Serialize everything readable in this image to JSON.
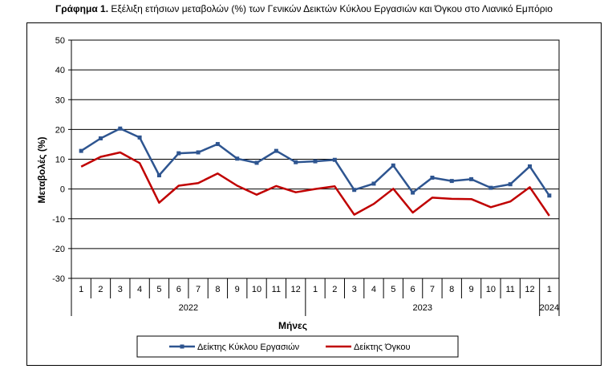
{
  "title_prefix": "Γράφημα 1.",
  "title_text": " Εξέλιξη ετήσιων μεταβολών (%) των Γενικών Δεικτών Κύκλου Εργασιών και Όγκου στο Λιανικό Εμπόριο",
  "chart_data": {
    "type": "line",
    "ylabel": "Μεταβολές  (%)",
    "xlabel": "Μήνες",
    "ylim": [
      -30,
      50
    ],
    "yticks": [
      -30,
      -20,
      -10,
      0,
      10,
      20,
      30,
      40,
      50
    ],
    "grid": "horizontal",
    "legend_position": "bottom",
    "categories": [
      "1",
      "2",
      "3",
      "4",
      "5",
      "6",
      "7",
      "8",
      "9",
      "10",
      "11",
      "12",
      "1",
      "2",
      "3",
      "4",
      "5",
      "6",
      "7",
      "8",
      "9",
      "10",
      "11",
      "12",
      "1"
    ],
    "years": [
      {
        "label": "2022",
        "start": 0,
        "end": 11
      },
      {
        "label": "2023",
        "start": 12,
        "end": 23
      },
      {
        "label": "2024",
        "start": 24,
        "end": 24
      }
    ],
    "series": [
      {
        "name": "Δείκτης Κύκλου Εργασιών",
        "color": "#2E5590",
        "values": [
          12.8,
          17.0,
          20.3,
          17.3,
          4.6,
          12.0,
          12.3,
          15.1,
          10.2,
          8.8,
          12.8,
          9.0,
          9.3,
          9.8,
          -0.3,
          1.8,
          7.9,
          -1.2,
          3.8,
          2.7,
          3.3,
          0.4,
          1.6,
          7.6,
          -2.2
        ]
      },
      {
        "name": "Δείκτης Όγκου",
        "color": "#C00000",
        "values": [
          7.5,
          10.8,
          12.3,
          8.7,
          -4.6,
          1.1,
          2.0,
          5.2,
          1.1,
          -1.9,
          1.0,
          -1.1,
          0.0,
          0.9,
          -8.6,
          -5.0,
          0.1,
          -7.9,
          -2.9,
          -3.3,
          -3.4,
          -6.1,
          -4.2,
          0.6,
          -9.0
        ]
      }
    ]
  }
}
